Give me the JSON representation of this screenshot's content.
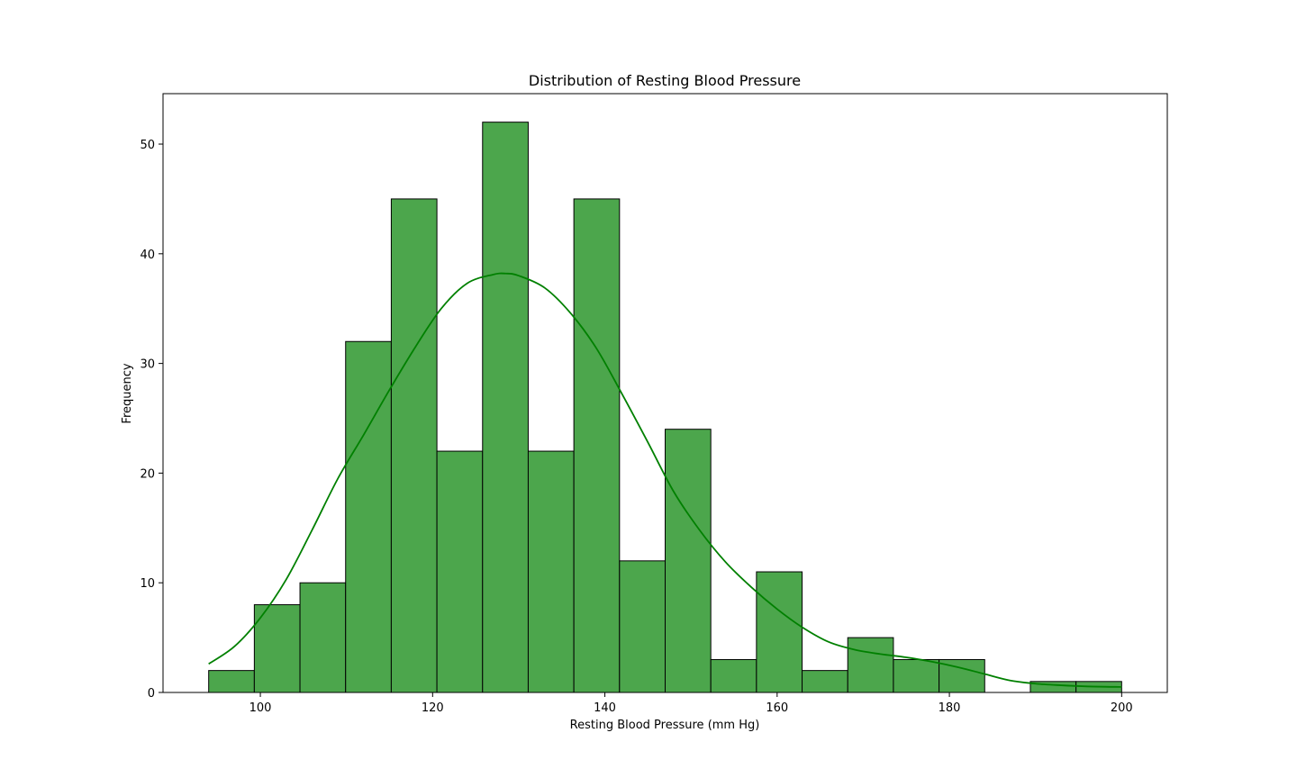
{
  "chart_data": {
    "type": "bar",
    "subtype": "histogram_with_kde",
    "title": "Distribution of Resting Blood Pressure",
    "xlabel": "Resting Blood Pressure (mm Hg)",
    "ylabel": "Frequency",
    "xlim": [
      88.7,
      205.3
    ],
    "ylim": [
      0,
      54.6
    ],
    "bin_start": 94,
    "bin_width": 5.3,
    "values": [
      2,
      8,
      10,
      32,
      45,
      22,
      52,
      22,
      45,
      12,
      24,
      3,
      11,
      2,
      5,
      3,
      3,
      0,
      1,
      1
    ],
    "x_ticks": [
      100,
      120,
      140,
      160,
      180,
      200
    ],
    "y_ticks": [
      0,
      10,
      20,
      30,
      40,
      50
    ],
    "x_tick_labels": [
      "100",
      "120",
      "140",
      "160",
      "180",
      "200"
    ],
    "y_tick_labels": [
      "0",
      "10",
      "20",
      "30",
      "40",
      "50"
    ],
    "kde": {
      "x": [
        94,
        97,
        100,
        103,
        106,
        109,
        112,
        115,
        118,
        121,
        124,
        127,
        128.5,
        130,
        133,
        136,
        139,
        142,
        145,
        148,
        151,
        154,
        157,
        160,
        163,
        166,
        169,
        172,
        175,
        178,
        181,
        184,
        187,
        190,
        193,
        196,
        200
      ],
      "y": [
        2.6,
        4.2,
        6.8,
        10.3,
        14.8,
        19.5,
        23.5,
        27.6,
        31.5,
        35.0,
        37.3,
        38.1,
        38.2,
        38.0,
        36.9,
        34.6,
        31.4,
        27.2,
        22.8,
        18.3,
        14.8,
        11.9,
        9.6,
        7.6,
        5.9,
        4.6,
        3.9,
        3.5,
        3.2,
        2.8,
        2.3,
        1.7,
        1.1,
        0.8,
        0.65,
        0.55,
        0.5
      ]
    },
    "colors": {
      "bar_fill": "#4ca64c",
      "bar_edge": "#000000",
      "kde_line": "#008000"
    },
    "grid": false,
    "legend": "none"
  }
}
